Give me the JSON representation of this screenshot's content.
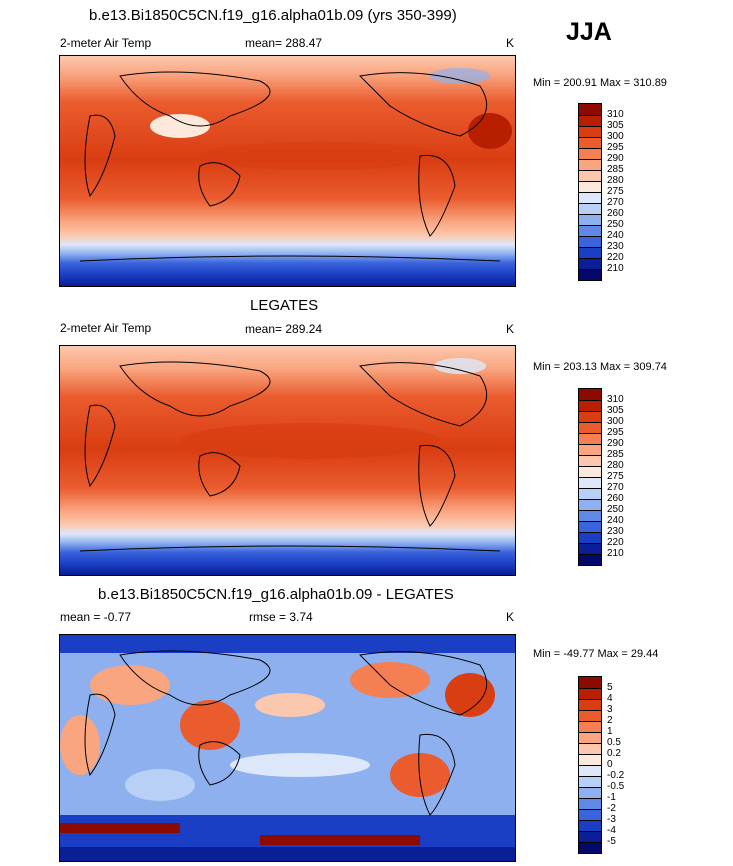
{
  "season_label": "JJA",
  "panels": [
    {
      "title": "b.e13.Bi1850C5CN.f19_g16.alpha01b.09 (yrs 350-399)",
      "left_label": "2-meter Air Temp",
      "center_label": "mean= 288.47",
      "units": "K",
      "minmax": "Min = 200.91 Max = 310.89",
      "colorbar_labels": [
        "310",
        "305",
        "300",
        "295",
        "290",
        "285",
        "280",
        "275",
        "270",
        "260",
        "250",
        "240",
        "230",
        "220",
        "210"
      ]
    },
    {
      "title": "LEGATES",
      "left_label": "2-meter Air Temp",
      "center_label": "mean= 289.24",
      "units": "K",
      "minmax": "Min = 203.13 Max = 309.74",
      "colorbar_labels": [
        "310",
        "305",
        "300",
        "295",
        "290",
        "285",
        "280",
        "275",
        "270",
        "260",
        "250",
        "240",
        "230",
        "220",
        "210"
      ]
    },
    {
      "title": "b.e13.Bi1850C5CN.f19_g16.alpha01b.09 - LEGATES",
      "left_label": "mean =  -0.77",
      "center_label": "rmse =   3.74",
      "units": "K",
      "minmax": "Min = -49.77 Max =  29.44",
      "colorbar_labels": [
        "5",
        "4",
        "3",
        "2",
        "1",
        "0.5",
        "0.2",
        "0",
        "-0.2",
        "-0.5",
        "-1",
        "-2",
        "-3",
        "-4",
        "-5"
      ]
    }
  ],
  "colors": {
    "colorbar": [
      "#8c0a00",
      "#b81e00",
      "#d93d12",
      "#ea5c2e",
      "#f37f52",
      "#f9a580",
      "#fcc8ad",
      "#fde9dc",
      "#dce8fa",
      "#b8cff6",
      "#8eb0ef",
      "#6088e4",
      "#3a64dc",
      "#1b3fc4",
      "#0a1e96",
      "#04086a"
    ]
  }
}
